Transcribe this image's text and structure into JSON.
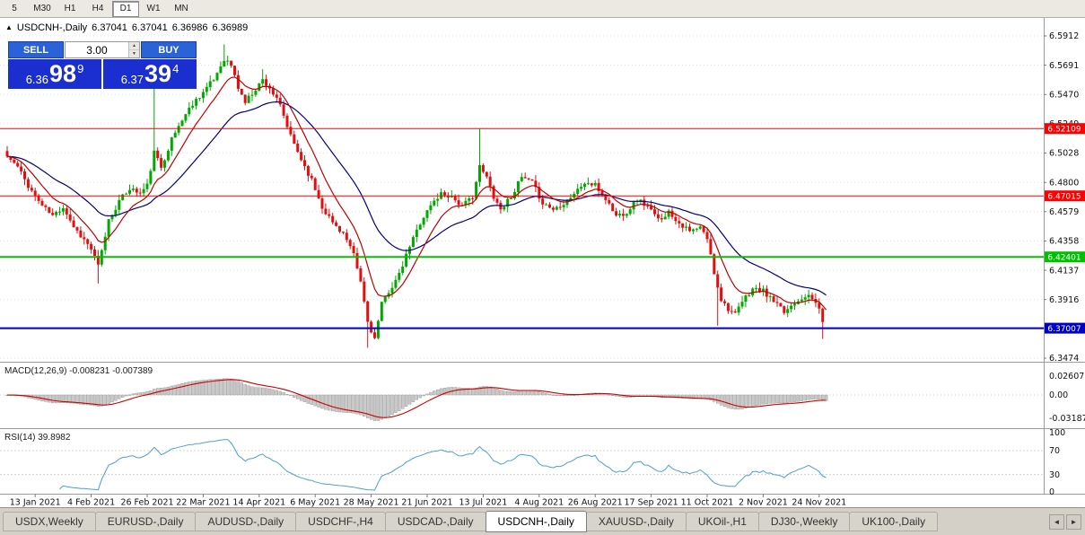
{
  "toolbar": {
    "timeframes": [
      {
        "label": "5",
        "active": false
      },
      {
        "label": "M30",
        "active": false
      },
      {
        "label": "H1",
        "active": false
      },
      {
        "label": "H4",
        "active": false
      },
      {
        "label": "D1",
        "active": true
      },
      {
        "label": "W1",
        "active": false
      },
      {
        "label": "MN",
        "active": false
      }
    ]
  },
  "chart": {
    "title": "USDCNH-,Daily",
    "ohlc": {
      "open": "6.37041",
      "high": "6.37041",
      "low": "6.36986",
      "close": "6.36989"
    },
    "y_ticks": [
      "6.5912",
      "6.5691",
      "6.5470",
      "6.5249",
      "6.5028",
      "6.4800",
      "6.4579",
      "6.4358",
      "6.4137",
      "6.3916",
      "6.3695",
      "6.3474"
    ],
    "hlines": [
      {
        "value": 6.52109,
        "label": "6.52109",
        "color": "#ff0000",
        "width": 1
      },
      {
        "value": 6.47015,
        "label": "6.47015",
        "color": "#ff0000",
        "width": 1
      },
      {
        "value": 6.42401,
        "label": "6.42401",
        "color": "#00c000",
        "width": 2
      },
      {
        "value": 6.37007,
        "label": "6.37007",
        "color": "#0000c8",
        "width": 2
      }
    ]
  },
  "trade": {
    "sell_label": "SELL",
    "buy_label": "BUY",
    "volume": "3.00",
    "sell_price": {
      "big": "6.36",
      "huge": "98",
      "sup": "9"
    },
    "buy_price": {
      "big": "6.37",
      "huge": "39",
      "sup": "4"
    }
  },
  "icons": {
    "collapse": "▲",
    "spinner_up": "▲",
    "spinner_down": "▼",
    "tab_left": "◄",
    "tab_right": "►"
  },
  "macd": {
    "label": "MACD(12,26,9) -0.008231 -0.007389",
    "axis": [
      "0.02607",
      "0.00",
      "-0.03187"
    ]
  },
  "rsi": {
    "label": "RSI(14) 39.8982",
    "axis": [
      "100",
      "70",
      "30",
      "0"
    ]
  },
  "chart_data": {
    "type": "candlestick",
    "symbol": "USDCNH-",
    "timeframe": "Daily",
    "bars": 235,
    "last": {
      "o": 6.37041,
      "h": 6.37041,
      "l": 6.36986,
      "c": 6.36989
    },
    "x_labels": [
      "13 Jan 2021",
      "4 Feb 2021",
      "26 Feb 2021",
      "22 Mar 2021",
      "14 Apr 2021",
      "6 May 2021",
      "28 May 2021",
      "21 Jun 2021",
      "13 Jul 2021",
      "4 Aug 2021",
      "26 Aug 2021",
      "17 Sep 2021",
      "11 Oct 2021",
      "2 Nov 2021",
      "24 Nov 2021"
    ],
    "y_range": [
      6.3474,
      6.5912
    ],
    "keypoints": [
      [
        0,
        6.5
      ],
      [
        3,
        6.492
      ],
      [
        6,
        6.478
      ],
      [
        8,
        6.47
      ],
      [
        10,
        6.463
      ],
      [
        13,
        6.455
      ],
      [
        16,
        6.462
      ],
      [
        19,
        6.447
      ],
      [
        22,
        6.437
      ],
      [
        24,
        6.43
      ],
      [
        26,
        6.417
      ],
      [
        27,
        6.428
      ],
      [
        29,
        6.452
      ],
      [
        32,
        6.466
      ],
      [
        35,
        6.476
      ],
      [
        38,
        6.472
      ],
      [
        40,
        6.478
      ],
      [
        42,
        6.503
      ],
      [
        44,
        6.492
      ],
      [
        47,
        6.513
      ],
      [
        50,
        6.528
      ],
      [
        53,
        6.54
      ],
      [
        56,
        6.549
      ],
      [
        59,
        6.558
      ],
      [
        62,
        6.574
      ],
      [
        64,
        6.569
      ],
      [
        66,
        6.552
      ],
      [
        68,
        6.541
      ],
      [
        70,
        6.548
      ],
      [
        73,
        6.558
      ],
      [
        75,
        6.552
      ],
      [
        78,
        6.538
      ],
      [
        81,
        6.515
      ],
      [
        84,
        6.498
      ],
      [
        87,
        6.482
      ],
      [
        90,
        6.462
      ],
      [
        93,
        6.45
      ],
      [
        96,
        6.442
      ],
      [
        99,
        6.425
      ],
      [
        101,
        6.405
      ],
      [
        103,
        6.375
      ],
      [
        105,
        6.362
      ],
      [
        107,
        6.388
      ],
      [
        109,
        6.398
      ],
      [
        112,
        6.41
      ],
      [
        115,
        6.432
      ],
      [
        118,
        6.45
      ],
      [
        121,
        6.463
      ],
      [
        124,
        6.472
      ],
      [
        127,
        6.47
      ],
      [
        130,
        6.462
      ],
      [
        133,
        6.47
      ],
      [
        135,
        6.492
      ],
      [
        137,
        6.484
      ],
      [
        139,
        6.47
      ],
      [
        141,
        6.46
      ],
      [
        144,
        6.47
      ],
      [
        147,
        6.484
      ],
      [
        150,
        6.48
      ],
      [
        153,
        6.465
      ],
      [
        156,
        6.46
      ],
      [
        159,
        6.465
      ],
      [
        162,
        6.472
      ],
      [
        165,
        6.48
      ],
      [
        168,
        6.478
      ],
      [
        171,
        6.468
      ],
      [
        174,
        6.455
      ],
      [
        177,
        6.458
      ],
      [
        180,
        6.468
      ],
      [
        183,
        6.462
      ],
      [
        186,
        6.452
      ],
      [
        189,
        6.458
      ],
      [
        192,
        6.45
      ],
      [
        195,
        6.443
      ],
      [
        198,
        6.446
      ],
      [
        200,
        6.438
      ],
      [
        202,
        6.412
      ],
      [
        204,
        6.392
      ],
      [
        206,
        6.385
      ],
      [
        208,
        6.38
      ],
      [
        210,
        6.39
      ],
      [
        213,
        6.4
      ],
      [
        216,
        6.398
      ],
      [
        219,
        6.39
      ],
      [
        222,
        6.382
      ],
      [
        225,
        6.39
      ],
      [
        228,
        6.395
      ],
      [
        230,
        6.392
      ],
      [
        232,
        6.386
      ],
      [
        233,
        6.373
      ],
      [
        234,
        6.36989
      ]
    ],
    "spikes": [
      {
        "b": 26,
        "l": 6.404
      },
      {
        "b": 42,
        "h": 6.56
      },
      {
        "b": 62,
        "h": 6.5848
      },
      {
        "b": 73,
        "h": 6.566
      },
      {
        "b": 103,
        "l": 6.3553
      },
      {
        "b": 135,
        "h": 6.5211
      },
      {
        "b": 203,
        "l": 6.372
      },
      {
        "b": 233,
        "l": 6.362
      }
    ],
    "noise": 0.004,
    "wick": 0.0045,
    "seed": 11,
    "ma_fast": 10,
    "ma_slow": 30,
    "colors": {
      "bull": "#00a800",
      "bear": "#e01010",
      "ma_fast": "#c00000",
      "ma_slow": "#000080",
      "macd_hist": "#c9c9c9",
      "macd_hist_border": "#8f8f8f",
      "macd_signal": "#cc0000",
      "rsi_line": "#4aa0d0"
    }
  },
  "tabs": {
    "items": [
      {
        "label": "USDX,Weekly",
        "active": false
      },
      {
        "label": "EURUSD-,Daily",
        "active": false
      },
      {
        "label": "AUDUSD-,Daily",
        "active": false
      },
      {
        "label": "USDCHF-,H4",
        "active": false
      },
      {
        "label": "USDCAD-,Daily",
        "active": false
      },
      {
        "label": "USDCNH-,Daily",
        "active": true
      },
      {
        "label": "XAUUSD-,Daily",
        "active": false
      },
      {
        "label": "UKOil-,H1",
        "active": false
      },
      {
        "label": "DJ30-,Weekly",
        "active": false
      },
      {
        "label": "UK100-,Daily",
        "active": false
      }
    ]
  }
}
